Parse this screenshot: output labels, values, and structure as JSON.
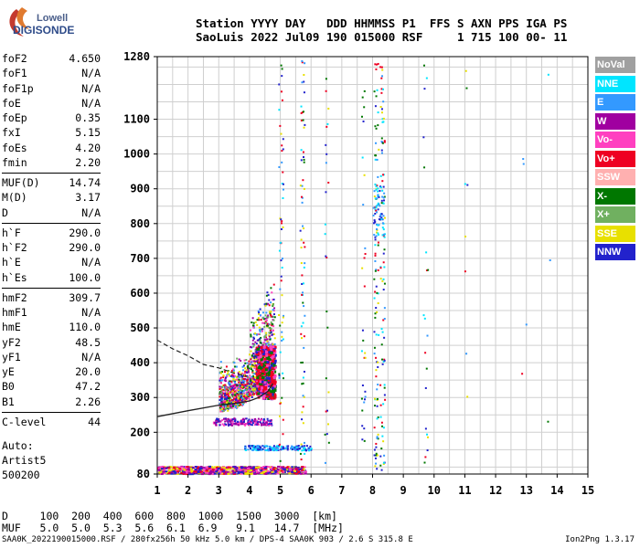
{
  "logo": {
    "brand_top": "Lowell",
    "brand_bottom": "DIGISONDE"
  },
  "header": {
    "line1": "Station YYYY DAY   DDD HHMMSS P1  FFS S AXN PPS IGA PS",
    "line2": "SaoLuis 2022 Jul09 190 015000 RSF     1 715 100 00- 11"
  },
  "params": [
    [
      {
        "name": "foF2",
        "value": "4.650"
      },
      {
        "name": "foF1",
        "value": "N/A"
      },
      {
        "name": "foF1p",
        "value": "N/A"
      },
      {
        "name": "foE",
        "value": "N/A"
      },
      {
        "name": "foEp",
        "value": "0.35"
      },
      {
        "name": "fxI",
        "value": "5.15"
      },
      {
        "name": "foEs",
        "value": "4.20"
      },
      {
        "name": "fmin",
        "value": "2.20"
      }
    ],
    [
      {
        "name": "MUF(D)",
        "value": "14.74"
      },
      {
        "name": "M(D)",
        "value": "3.17"
      },
      {
        "name": "D",
        "value": "N/A"
      }
    ],
    [
      {
        "name": "h`F",
        "value": "290.0"
      },
      {
        "name": "h`F2",
        "value": "290.0"
      },
      {
        "name": "h`E",
        "value": "N/A"
      },
      {
        "name": "h`Es",
        "value": "100.0"
      }
    ],
    [
      {
        "name": "hmF2",
        "value": "309.7"
      },
      {
        "name": "hmF1",
        "value": "N/A"
      },
      {
        "name": "hmE",
        "value": "110.0"
      },
      {
        "name": "yF2",
        "value": "48.5"
      },
      {
        "name": "yF1",
        "value": "N/A"
      },
      {
        "name": "yE",
        "value": "20.0"
      },
      {
        "name": "B0",
        "value": "47.2"
      },
      {
        "name": "B1",
        "value": "2.26"
      }
    ],
    [
      {
        "name": "C-level",
        "value": "44"
      }
    ]
  ],
  "auto": {
    "line1": "Auto:",
    "line2": "Artist5",
    "line3": "500200"
  },
  "legend": [
    {
      "label": "NoVal",
      "color": "#a0a0a0"
    },
    {
      "label": "NNE",
      "color": "#00e5ff"
    },
    {
      "label": "E",
      "color": "#3399ff"
    },
    {
      "label": "W",
      "color": "#a000a0"
    },
    {
      "label": "Vo-",
      "color": "#ff40c0"
    },
    {
      "label": "Vo+",
      "color": "#ee0022"
    },
    {
      "label": "SSW",
      "color": "#ffb0b0"
    },
    {
      "label": "X-",
      "color": "#007700"
    },
    {
      "label": "X+",
      "color": "#70b060"
    },
    {
      "label": "SSE",
      "color": "#e8e000"
    },
    {
      "label": "NNW",
      "color": "#2222cc"
    }
  ],
  "dmuf": {
    "line1": "D     100  200  400  600  800  1000  1500  3000  [km]",
    "line2": "MUF   5.0  5.0  5.3  5.6  6.1  6.9   9.1   14.7  [MHz]"
  },
  "footer": {
    "left": "SAA0K_2022190015000.RSF / 280fx256h 50 kHz 5.0 km / DPS-4 SAA0K 903 / 2.6 S 315.8 E",
    "right": "Ion2Png 1.3.17"
  },
  "chart_data": {
    "type": "scatter",
    "xlim": [
      1,
      15
    ],
    "ylim": [
      80,
      1280
    ],
    "x_ticks": [
      "1",
      "2",
      "3",
      "4",
      "5",
      "6",
      "7",
      "8",
      "9",
      "10",
      "11",
      "12",
      "13",
      "14",
      "15"
    ],
    "y_ticks": [
      {
        "v": 80,
        "label": "80"
      },
      {
        "v": 200,
        "label": "200"
      },
      {
        "v": 300,
        "label": "300"
      },
      {
        "v": 400,
        "label": "400"
      },
      {
        "v": 500,
        "label": "500"
      },
      {
        "v": 600,
        "label": "600"
      },
      {
        "v": 700,
        "label": "700"
      },
      {
        "v": 800,
        "label": "800"
      },
      {
        "v": 900,
        "label": "900"
      },
      {
        "v": 1000,
        "label": "1000"
      },
      {
        "v": 1100,
        "label": "1100"
      },
      {
        "v": 1280,
        "label": "1280"
      }
    ],
    "grid": true,
    "profile_solid": [
      [
        1.0,
        245
      ],
      [
        2.0,
        262
      ],
      [
        3.0,
        278
      ],
      [
        3.6,
        284
      ],
      [
        4.0,
        290
      ],
      [
        4.3,
        300
      ],
      [
        4.6,
        318
      ],
      [
        4.75,
        340
      ]
    ],
    "profile_dashed": [
      [
        1.0,
        465
      ],
      [
        1.5,
        440
      ],
      [
        2.0,
        420
      ],
      [
        2.5,
        395
      ],
      [
        3.0,
        385
      ],
      [
        3.5,
        370
      ],
      [
        3.9,
        362
      ]
    ],
    "trace_f2": [
      [
        3.0,
        282
      ],
      [
        3.3,
        286
      ],
      [
        3.6,
        292
      ],
      [
        3.9,
        300
      ],
      [
        4.1,
        310
      ],
      [
        4.3,
        325
      ],
      [
        4.45,
        345
      ],
      [
        4.55,
        365
      ],
      [
        4.6,
        390
      ],
      [
        4.62,
        410
      ]
    ],
    "trace_es": [
      [
        1.0,
        85
      ],
      [
        1.5,
        86
      ],
      [
        2.0,
        90
      ],
      [
        2.5,
        95
      ],
      [
        3.0,
        98
      ],
      [
        3.5,
        99
      ],
      [
        4.0,
        100
      ],
      [
        4.2,
        100
      ]
    ]
  }
}
